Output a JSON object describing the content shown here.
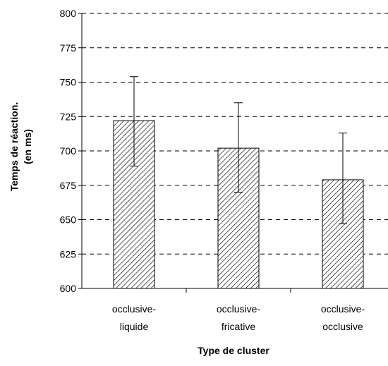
{
  "chart_data": {
    "type": "bar",
    "title": "",
    "xlabel": "Type de cluster",
    "ylabel_lines": [
      "Temps de réaction.",
      "(en ms)"
    ],
    "ylim": [
      600,
      800
    ],
    "yticks": [
      600,
      625,
      650,
      675,
      700,
      725,
      750,
      775,
      800
    ],
    "grid": "dashed horizontal",
    "categories": [
      [
        "occlusive-",
        "liquide"
      ],
      [
        "occlusive-",
        "fricative"
      ],
      [
        "occlusive-",
        "occlusive"
      ]
    ],
    "values": [
      722,
      702,
      679
    ],
    "error_low": [
      689,
      670,
      647
    ],
    "error_high": [
      754,
      735,
      713
    ],
    "bar_fill": "diagonal hatch",
    "colors": {
      "bar_stroke": "#000000",
      "hatch": "#000000",
      "grid": "#000000"
    }
  }
}
